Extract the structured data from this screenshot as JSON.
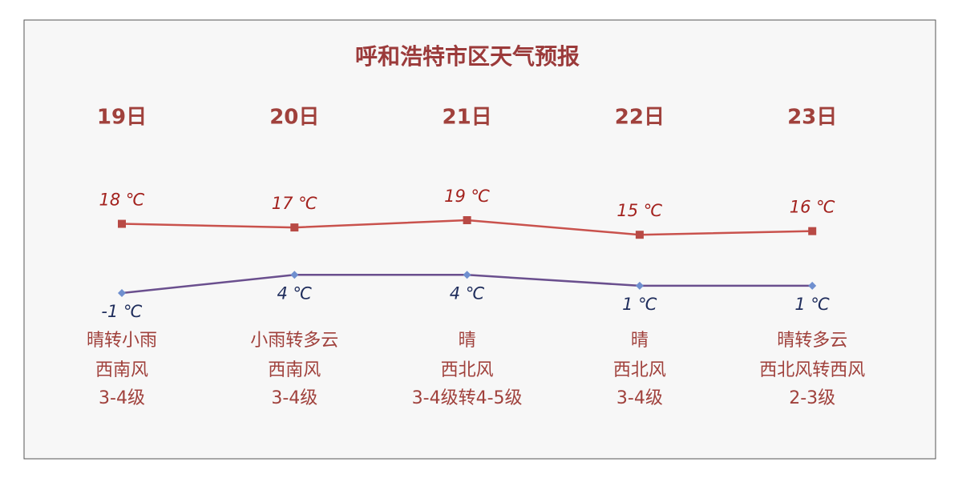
{
  "chart_data": {
    "type": "line",
    "title": "呼和浩特市区天气预报",
    "categories": [
      "19日",
      "20日",
      "21日",
      "22日",
      "23日"
    ],
    "series": [
      {
        "color": "#c9524d",
        "marker_color": "#b84a45",
        "marker": "square",
        "values": [
          18,
          17,
          19,
          15,
          16
        ],
        "value_labels": [
          "18 ℃",
          "17 ℃",
          "19 ℃",
          "15 ℃",
          "16 ℃"
        ],
        "label_position": "above"
      },
      {
        "color": "#6a4f8e",
        "marker_color": "#6f8fcf",
        "marker": "diamond",
        "values": [
          -1,
          4,
          4,
          1,
          1
        ],
        "value_labels": [
          "-1 ℃",
          "4 ℃",
          "4 ℃",
          "1 ℃",
          "1 ℃"
        ],
        "label_position": "below"
      }
    ],
    "weather": [
      "晴转小雨",
      "小雨转多云",
      "晴",
      "晴",
      "晴转多云"
    ],
    "wind": [
      "西南风",
      "西南风",
      "西北风",
      "西北风",
      "西北风转西风"
    ],
    "wind_level": [
      "3-4级",
      "3-4级",
      "3-4级转4-5级",
      "3-4级",
      "2-3级"
    ]
  }
}
